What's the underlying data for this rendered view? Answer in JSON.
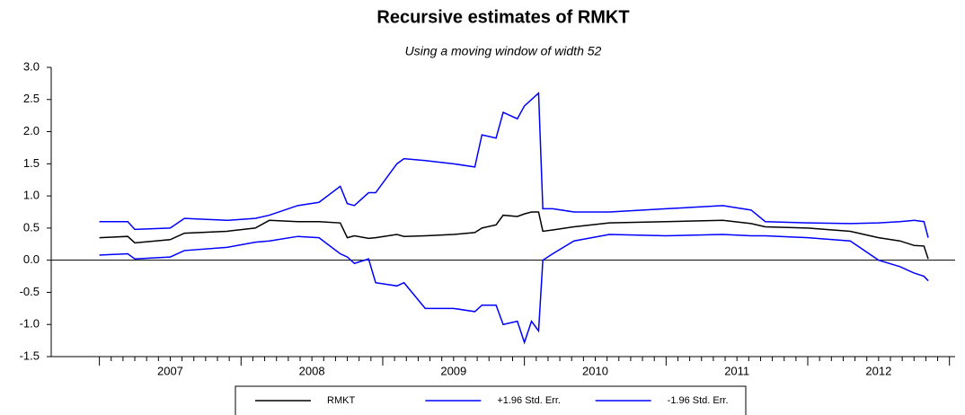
{
  "chart_data": {
    "type": "line",
    "title": "Recursive estimates of RMKT",
    "subtitle": "Using a moving window of width 52",
    "x": [
      2007.0,
      2007.2,
      2007.25,
      2007.5,
      2007.6,
      2007.9,
      2008.1,
      2008.2,
      2008.4,
      2008.55,
      2008.7,
      2008.75,
      2008.8,
      2008.9,
      2008.95,
      2009.1,
      2009.15,
      2009.3,
      2009.5,
      2009.65,
      2009.7,
      2009.8,
      2009.85,
      2009.95,
      2010.0,
      2010.05,
      2010.1,
      2010.13,
      2010.2,
      2010.35,
      2010.6,
      2011.0,
      2011.4,
      2011.6,
      2011.7,
      2012.0,
      2012.3,
      2012.5,
      2012.65,
      2012.75,
      2012.82,
      2012.85
    ],
    "series": [
      {
        "name": "RMKT",
        "color": "#000000",
        "values": [
          0.35,
          0.37,
          0.27,
          0.32,
          0.42,
          0.45,
          0.5,
          0.62,
          0.6,
          0.6,
          0.58,
          0.35,
          0.38,
          0.34,
          0.35,
          0.4,
          0.37,
          0.38,
          0.4,
          0.43,
          0.5,
          0.55,
          0.7,
          0.68,
          0.72,
          0.75,
          0.75,
          0.45,
          0.47,
          0.52,
          0.58,
          0.6,
          0.62,
          0.57,
          0.52,
          0.5,
          0.45,
          0.35,
          0.3,
          0.23,
          0.22,
          0.02
        ]
      },
      {
        "name": "+1.96 Std. Err.",
        "color": "#0000ff",
        "values": [
          0.6,
          0.6,
          0.48,
          0.5,
          0.65,
          0.62,
          0.65,
          0.7,
          0.85,
          0.9,
          1.15,
          0.88,
          0.85,
          1.05,
          1.05,
          1.5,
          1.58,
          1.55,
          1.5,
          1.45,
          1.95,
          1.9,
          2.3,
          2.2,
          2.4,
          2.5,
          2.6,
          0.8,
          0.8,
          0.75,
          0.75,
          0.8,
          0.85,
          0.78,
          0.6,
          0.58,
          0.57,
          0.58,
          0.6,
          0.62,
          0.6,
          0.35
        ]
      },
      {
        "name": "-1.96 Std. Err.",
        "color": "#0000ff",
        "values": [
          0.08,
          0.1,
          0.02,
          0.05,
          0.15,
          0.2,
          0.28,
          0.3,
          0.37,
          0.35,
          0.1,
          0.05,
          -0.05,
          0.02,
          -0.35,
          -0.4,
          -0.35,
          -0.75,
          -0.75,
          -0.8,
          -0.7,
          -0.7,
          -1.0,
          -0.95,
          -1.28,
          -0.95,
          -1.1,
          0,
          0.1,
          0.3,
          0.4,
          0.38,
          0.4,
          0.38,
          0.38,
          0.35,
          0.3,
          0.0,
          -0.1,
          -0.2,
          -0.25,
          -0.32
        ]
      }
    ],
    "xlim": [
      2006.66,
      2013.04
    ],
    "xticks": [
      {
        "value": 2007,
        "label": "2007"
      },
      {
        "value": 2008,
        "label": "2008"
      },
      {
        "value": 2009,
        "label": "2009"
      },
      {
        "value": 2010,
        "label": "2010"
      },
      {
        "value": 2011,
        "label": "2011"
      },
      {
        "value": 2012,
        "label": "2012"
      }
    ],
    "ylim": [
      -1.5,
      3.0
    ],
    "yticks": [
      -1.5,
      {
        "value": -1.0,
        "label": "-1.0"
      },
      -0.5,
      {
        "value": 0,
        "label": "0.0"
      },
      0.5,
      {
        "value": 1.0,
        "label": "1.0"
      },
      1.5,
      {
        "value": 2.0,
        "label": "2.0"
      },
      2.5,
      {
        "value": 3.0,
        "label": "3.0"
      }
    ],
    "legend": "bottom"
  }
}
